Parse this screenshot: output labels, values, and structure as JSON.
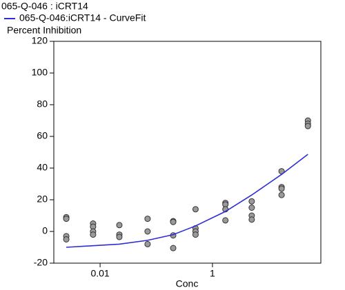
{
  "chart_data": {
    "type": "scatter",
    "ylabel": "Percent Inhibition",
    "xlabel": "Conc",
    "log_x": true,
    "xlim": [
      0.0015,
      85
    ],
    "xticks": [
      0.01,
      1
    ],
    "ylim": [
      -20,
      120
    ],
    "yticks": [
      -20,
      0,
      20,
      40,
      60,
      80,
      100,
      120
    ],
    "series": [
      {
        "name": "065-Q-046  : iCRT14",
        "type": "scatter",
        "color": "#9a9a9a",
        "x": [
          0.0025,
          0.0025,
          0.0025,
          0.0025,
          0.0075,
          0.0075,
          0.0075,
          0.0075,
          0.022,
          0.022,
          0.022,
          0.07,
          0.07,
          0.07,
          0.2,
          0.2,
          0.2,
          0.2,
          0.5,
          0.5,
          0.5,
          0.5,
          1.7,
          1.7,
          1.7,
          1.7,
          5,
          5,
          5,
          5,
          17,
          17,
          17,
          17,
          50,
          50,
          50
        ],
        "values": [
          9,
          8,
          -3,
          -5,
          5,
          3,
          0,
          -2,
          4,
          -2,
          -3.5,
          8,
          0,
          -8,
          6.5,
          6,
          -2.5,
          -10.5,
          14,
          2,
          0,
          -2,
          18,
          17,
          14,
          7,
          19,
          15,
          10,
          7.5,
          38,
          28,
          27,
          23,
          70,
          68,
          66.5
        ]
      },
      {
        "name": "065-Q-046:iCRT14 - CurveFit",
        "type": "line",
        "color": "#2b2bd8",
        "x": [
          0.0025,
          0.0075,
          0.022,
          0.07,
          0.2,
          0.5,
          1.7,
          5,
          17,
          50
        ],
        "values": [
          -10,
          -9,
          -8,
          -5.6,
          -2,
          3.5,
          12.6,
          23,
          36,
          48.7
        ]
      }
    ]
  }
}
